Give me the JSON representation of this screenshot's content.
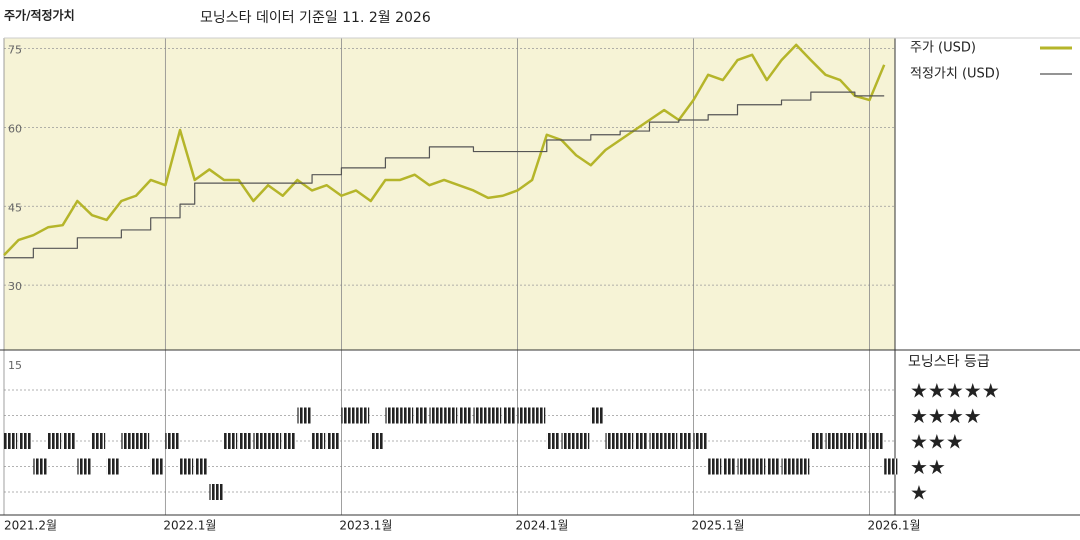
{
  "chart_data": {
    "type": "line",
    "title": "모닝스타 데이터 기준일 11. 2월 2026",
    "y_label": "주가/적정가치",
    "ylim": [
      15,
      77
    ],
    "yticks": [
      15,
      30,
      45,
      60,
      75
    ],
    "x": [
      "2021-02",
      "2021-03",
      "2021-04",
      "2021-05",
      "2021-06",
      "2021-07",
      "2021-08",
      "2021-09",
      "2021-10",
      "2021-11",
      "2021-12",
      "2022-01",
      "2022-02",
      "2022-03",
      "2022-04",
      "2022-05",
      "2022-06",
      "2022-07",
      "2022-08",
      "2022-09",
      "2022-10",
      "2022-11",
      "2022-12",
      "2023-01",
      "2023-02",
      "2023-03",
      "2023-04",
      "2023-05",
      "2023-06",
      "2023-07",
      "2023-08",
      "2023-09",
      "2023-10",
      "2023-11",
      "2023-12",
      "2024-01",
      "2024-02",
      "2024-03",
      "2024-04",
      "2024-05",
      "2024-06",
      "2024-07",
      "2024-08",
      "2024-09",
      "2024-10",
      "2024-11",
      "2024-12",
      "2025-01",
      "2025-02",
      "2025-03",
      "2025-04",
      "2025-05",
      "2025-06",
      "2025-07",
      "2025-08",
      "2025-09",
      "2025-10",
      "2025-11",
      "2025-12",
      "2026-01",
      "2026-02"
    ],
    "xticks": [
      {
        "value": "2021-02",
        "label": "2021.2월"
      },
      {
        "value": "2022-01",
        "label": "2022.1월"
      },
      {
        "value": "2023-01",
        "label": "2023.1월"
      },
      {
        "value": "2024-01",
        "label": "2024.1월"
      },
      {
        "value": "2025-01",
        "label": "2025.1월"
      },
      {
        "value": "2026-01",
        "label": "2026.1월"
      }
    ],
    "series": [
      {
        "name": "주가 (USD)",
        "color": "#b5b52a",
        "values": [
          35.7,
          38.6,
          39.5,
          41,
          41.4,
          46,
          43.3,
          42.4,
          46,
          47,
          50,
          49,
          59.5,
          50,
          52,
          50,
          50,
          46,
          49,
          47,
          50,
          48,
          49,
          47,
          48,
          46,
          50,
          50,
          51,
          49,
          50,
          49,
          48,
          46.6,
          47,
          48,
          50,
          58.6,
          57.6,
          54.7,
          52.8,
          55.7,
          57.6,
          59.5,
          61.4,
          63.3,
          61.4,
          65.2,
          70,
          69,
          72.8,
          73.8,
          69,
          72.8,
          75.7,
          72.8,
          70,
          69,
          66,
          65.2,
          71.9
        ]
      },
      {
        "name": "적정가치 (USD)",
        "color": "#555555",
        "values": [
          35.2,
          35.2,
          37,
          37,
          37,
          39,
          39,
          39,
          40.5,
          40.5,
          42.8,
          42.8,
          45.4,
          49.4,
          49.4,
          49.4,
          49.4,
          49.4,
          49.4,
          49.4,
          49.4,
          51,
          51,
          52.3,
          52.3,
          52.3,
          54.2,
          54.2,
          54.2,
          56.3,
          56.3,
          56.3,
          55.4,
          55.4,
          55.4,
          55.4,
          55.4,
          57.6,
          57.6,
          57.6,
          58.6,
          58.6,
          59.3,
          59.3,
          61,
          61,
          61.4,
          61.4,
          62.4,
          62.4,
          64.3,
          64.3,
          64.3,
          65.2,
          65.2,
          66.7,
          66.7,
          66.7,
          66,
          66,
          66
        ]
      }
    ],
    "ratings": {
      "title": "모닝스타 등급",
      "levels": [
        {
          "value": 5,
          "label": "★★★★★"
        },
        {
          "value": 4,
          "label": "★★★★"
        },
        {
          "value": 3,
          "label": "★★★"
        },
        {
          "value": 2,
          "label": "★★"
        },
        {
          "value": 1,
          "label": "★"
        }
      ],
      "values": [
        3,
        3,
        2,
        3,
        3,
        2,
        3,
        2,
        3,
        3,
        2,
        3,
        2,
        2,
        1,
        3,
        3,
        3,
        3,
        3,
        4,
        3,
        3,
        4,
        4,
        3,
        4,
        4,
        4,
        4,
        4,
        4,
        4,
        4,
        4,
        4,
        4,
        3,
        3,
        3,
        4,
        3,
        3,
        3,
        3,
        3,
        3,
        3,
        2,
        2,
        2,
        2,
        2,
        2,
        2,
        3,
        3,
        3,
        3,
        3,
        2
      ]
    }
  }
}
